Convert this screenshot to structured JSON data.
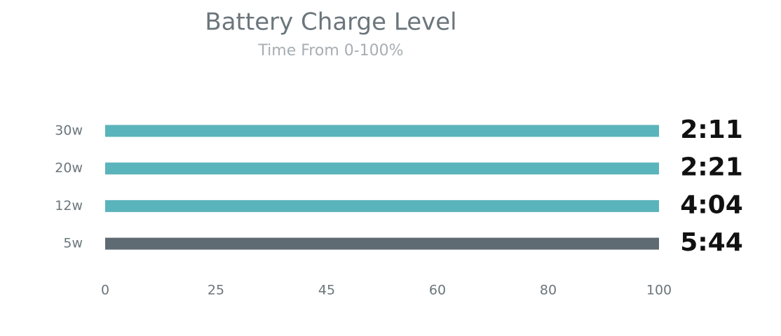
{
  "chart_data": {
    "type": "hbar",
    "title": "Battery Charge Level",
    "subtitle": "Time From 0-100%",
    "categories": [
      "30w",
      "20w",
      "12w",
      "5w"
    ],
    "values": [
      100,
      100,
      100,
      100
    ],
    "colors": [
      "#5ab4bb",
      "#5ab4bb",
      "#5ab4bb",
      "#5f6b72"
    ],
    "annotations": [
      "2:11",
      "2:21",
      "4:04",
      "5:44"
    ],
    "xlim": [
      0,
      100
    ],
    "xticks": [
      0,
      25,
      45,
      60,
      80,
      100
    ],
    "grid": false
  }
}
